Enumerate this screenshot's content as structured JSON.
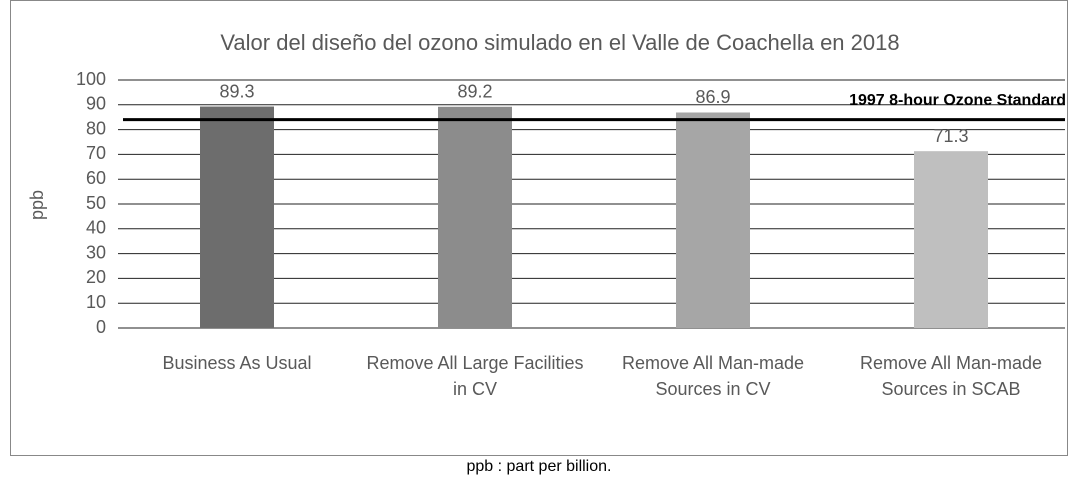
{
  "chart_data": {
    "type": "bar",
    "title": "Valor del diseño del ozono simulado en el Valle de Coachella en 2018",
    "y_label": "ppb",
    "categories": [
      "Business As Usual",
      "Remove All Large Facilities in CV",
      "Remove All Man-made Sources in CV",
      "Remove All Man-made Sources in SCAB"
    ],
    "values": [
      89.3,
      89.2,
      86.9,
      71.3
    ],
    "colors": [
      "#6d6d6d",
      "#8c8c8c",
      "#a6a6a6",
      "#bfbfbf"
    ],
    "ylim": [
      0,
      100
    ],
    "yticks": [
      0,
      10,
      20,
      30,
      40,
      50,
      60,
      70,
      80,
      90,
      100
    ],
    "grid": true,
    "reference_line": {
      "value": 84,
      "label": "1997 8-hour Ozone Standard",
      "color": "#000000"
    }
  },
  "caption": "ppb : part per billion."
}
